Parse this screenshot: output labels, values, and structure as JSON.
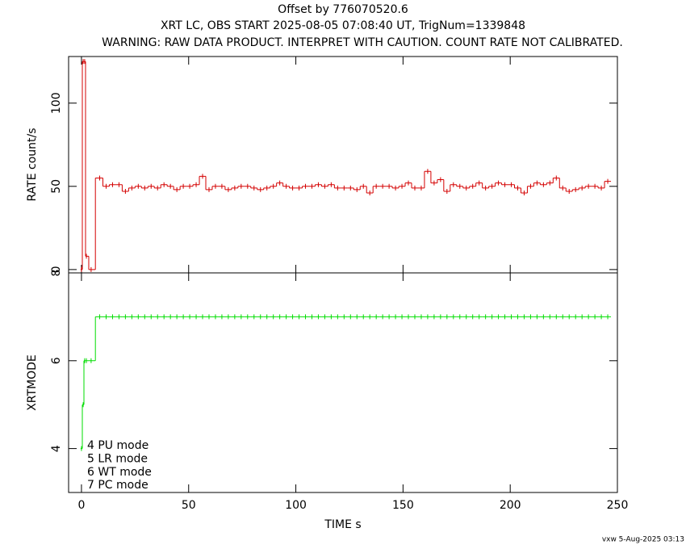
{
  "chart_data": [
    {
      "type": "step",
      "title": "Offset by 776070520.6",
      "subtitle": "XRT LC, OBS START 2025-08-05 07:08:40 UT, TrigNum=1339848",
      "annotation": "WARNING: RAW DATA PRODUCT. INTERPRET WITH CAUTION. COUNT RATE NOT CALIBRATED.",
      "ylabel": "RATE  count/s",
      "x": [
        0,
        0.8,
        1.5,
        2.3,
        4.5,
        8.5,
        11.5,
        14.5,
        17.5,
        20.5,
        23.5,
        26.5,
        29.5,
        32.5,
        35.5,
        38.5,
        41.5,
        44.5,
        47.5,
        50.5,
        53.5,
        56.5,
        59.5,
        62.5,
        65.5,
        68.5,
        71.5,
        74.5,
        77.5,
        80.5,
        83.5,
        86.5,
        89.5,
        92.5,
        95.5,
        98.5,
        101.5,
        104.5,
        107.5,
        110.5,
        113.5,
        116.5,
        119.5,
        122.5,
        125.5,
        128.5,
        131.5,
        134.5,
        137.5,
        140.5,
        143.5,
        146.5,
        149.5,
        152.5,
        155.5,
        158.5,
        161.5,
        164.5,
        167.5,
        170.5,
        173.5,
        176.5,
        179.5,
        182.5,
        185.5,
        188.5,
        191.5,
        194.5,
        197.5,
        200.5,
        203.5,
        206.5,
        209.5,
        212.5,
        215.5,
        218.5,
        221.5,
        224.5,
        227.5,
        230.5,
        233.5,
        236.5,
        239.5,
        242.5,
        245.5
      ],
      "series": [
        {
          "name": "RATE",
          "color": "#d40000",
          "values": [
            0,
            125,
            125,
            8,
            0,
            55,
            50,
            51,
            51,
            47,
            49,
            50,
            49,
            50,
            49,
            51,
            50,
            48,
            50,
            50,
            51,
            56,
            48,
            50,
            50,
            48,
            49,
            50,
            50,
            49,
            48,
            49,
            50,
            52,
            50,
            49,
            49,
            50,
            50,
            51,
            50,
            51,
            49,
            49,
            49,
            48,
            50,
            46,
            50,
            50,
            50,
            49,
            50,
            52,
            49,
            49,
            59,
            52,
            54,
            47,
            51,
            50,
            49,
            50,
            52,
            49,
            50,
            52,
            51,
            51,
            49,
            46,
            50,
            52,
            51,
            52,
            55,
            49,
            47,
            48,
            49,
            50,
            50,
            49,
            53
          ]
        }
      ],
      "xlim": [
        -6,
        250
      ],
      "xticks": [
        0,
        50,
        100,
        150,
        200,
        250
      ],
      "ylim": [
        -2,
        128
      ],
      "yticks": [
        0,
        50,
        100
      ]
    },
    {
      "type": "step",
      "xlabel": "TIME  s",
      "ylabel": "XRTMODE",
      "annotations": [
        "4  PU  mode",
        "5  LR  mode",
        "6  WT  mode",
        "7  PC  mode"
      ],
      "series": [
        {
          "name": "XRTMODE",
          "color": "#00dd00",
          "values": [
            4,
            5,
            6,
            6,
            6,
            7,
            7,
            7,
            7,
            7,
            7,
            7,
            7,
            7,
            7,
            7,
            7,
            7,
            7,
            7,
            7,
            7,
            7,
            7,
            7,
            7,
            7,
            7,
            7,
            7,
            7,
            7,
            7,
            7,
            7,
            7,
            7,
            7,
            7,
            7,
            7,
            7,
            7,
            7,
            7,
            7,
            7,
            7,
            7,
            7,
            7,
            7,
            7,
            7,
            7,
            7,
            7,
            7,
            7,
            7,
            7,
            7,
            7,
            7,
            7,
            7,
            7,
            7,
            7,
            7,
            7,
            7,
            7,
            7,
            7,
            7,
            7,
            7,
            7,
            7,
            7,
            7,
            7,
            7,
            7
          ]
        }
      ],
      "xlim": [
        -6,
        250
      ],
      "xticks": [
        0,
        50,
        100,
        150,
        200,
        250
      ],
      "ylim": [
        3,
        8
      ],
      "yticks": [
        4,
        6,
        8
      ]
    }
  ],
  "footer": "vxw  5-Aug-2025 03:13"
}
